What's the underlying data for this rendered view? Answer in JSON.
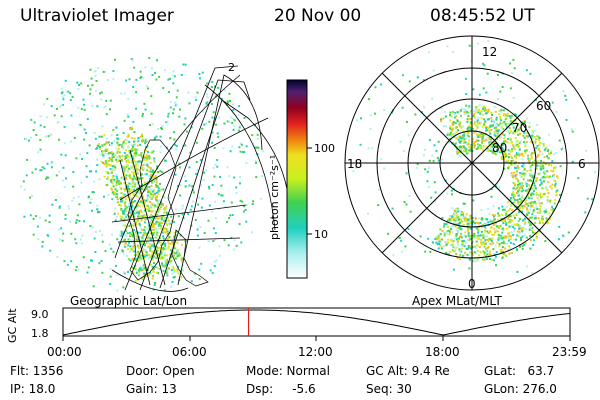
{
  "header": {
    "instrument": "Ultraviolet Imager",
    "date": "20 Nov 00",
    "time": "08:45:52 UT"
  },
  "colorbar": {
    "unit_label": "photon cm⁻²s⁻¹",
    "ticks": [
      "100",
      "10"
    ]
  },
  "panels": {
    "geo_label": "Geographic Lat/Lon",
    "apex_label": "Apex MLat/MLT",
    "mlt_labels": [
      "12",
      "18",
      "6",
      "0"
    ],
    "lat_labels": [
      "60",
      "70",
      "80"
    ],
    "grid_corner_label": "2"
  },
  "altitude_plot": {
    "ylabel": "GC Alt",
    "yticks": [
      "9.0",
      "1.8"
    ],
    "xticks": [
      "00:00",
      "06:00",
      "12:00",
      "18:00",
      "23:59"
    ],
    "current_time_fraction": 0.366,
    "marker_color": "#e02020"
  },
  "status": {
    "flt": "Flt: 1356",
    "ip": "IP: 18.0",
    "door": "Door: Open",
    "gain": "Gain: 13",
    "mode": "Mode: Normal",
    "dsp": "Dsp:     -5.6",
    "gc_alt": "GC Alt: 9.4 Re",
    "seq": "Seq: 30",
    "glat": "GLat:   63.7",
    "glon": "GLon: 276.0"
  }
}
